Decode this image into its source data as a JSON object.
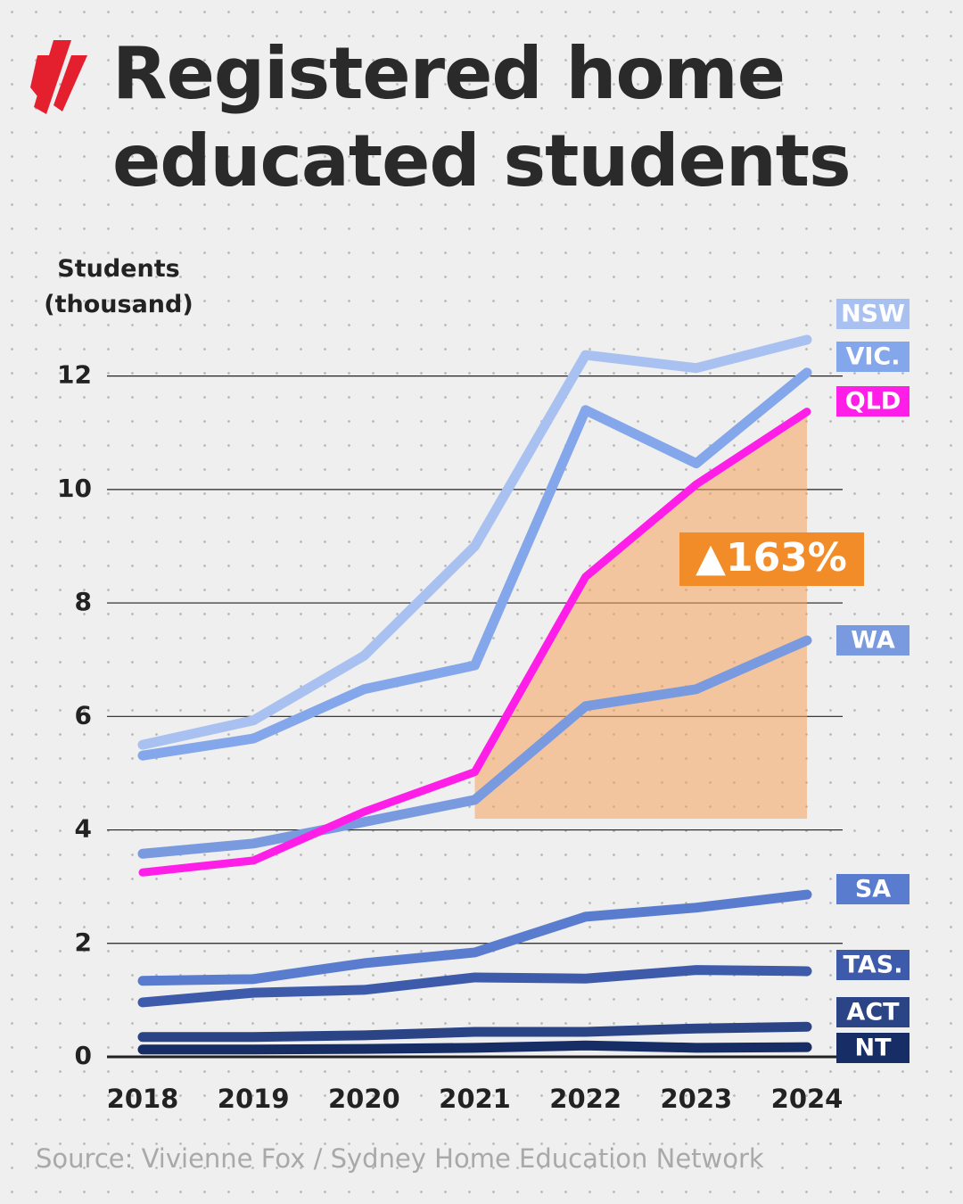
{
  "chart_data": {
    "type": "line",
    "title": "Registered home educated students",
    "y_label": "Students (thousand)",
    "source": "Source: Vivienne Fox / Sydney Home Education Network",
    "annotation": "▲163%",
    "categories": [
      "2018",
      "2019",
      "2020",
      "2021",
      "2022",
      "2023",
      "2024"
    ],
    "ylim": [
      0,
      13
    ],
    "yticks": [
      0,
      2,
      4,
      6,
      8,
      10,
      12
    ],
    "grid": true,
    "series": [
      {
        "name": "NSW",
        "color": "#a9c1f0",
        "values": [
          5.5,
          5.93,
          7.07,
          9.0,
          12.37,
          12.14,
          12.64
        ]
      },
      {
        "name": "VIC.",
        "color": "#84a6ea",
        "values": [
          5.31,
          5.61,
          6.48,
          6.9,
          11.4,
          10.46,
          12.06
        ]
      },
      {
        "name": "QLD",
        "color": "#ff1ee8",
        "values": [
          3.25,
          3.46,
          4.32,
          5.02,
          8.46,
          10.09,
          11.37
        ]
      },
      {
        "name": "WA",
        "color": "#7a9ae0",
        "values": [
          3.58,
          3.76,
          4.14,
          4.53,
          6.18,
          6.48,
          7.34
        ]
      },
      {
        "name": "SA",
        "color": "#5a7ccf",
        "values": [
          1.34,
          1.37,
          1.65,
          1.84,
          2.47,
          2.63,
          2.86
        ]
      },
      {
        "name": "TAS.",
        "color": "#3d5aab",
        "values": [
          0.96,
          1.13,
          1.18,
          1.4,
          1.38,
          1.53,
          1.51
        ]
      },
      {
        "name": "ACT",
        "color": "#2a4485",
        "values": [
          0.35,
          0.35,
          0.38,
          0.44,
          0.44,
          0.5,
          0.53
        ]
      },
      {
        "name": "NT",
        "color": "#172d66",
        "values": [
          0.13,
          0.13,
          0.14,
          0.16,
          0.2,
          0.16,
          0.17
        ]
      }
    ]
  }
}
